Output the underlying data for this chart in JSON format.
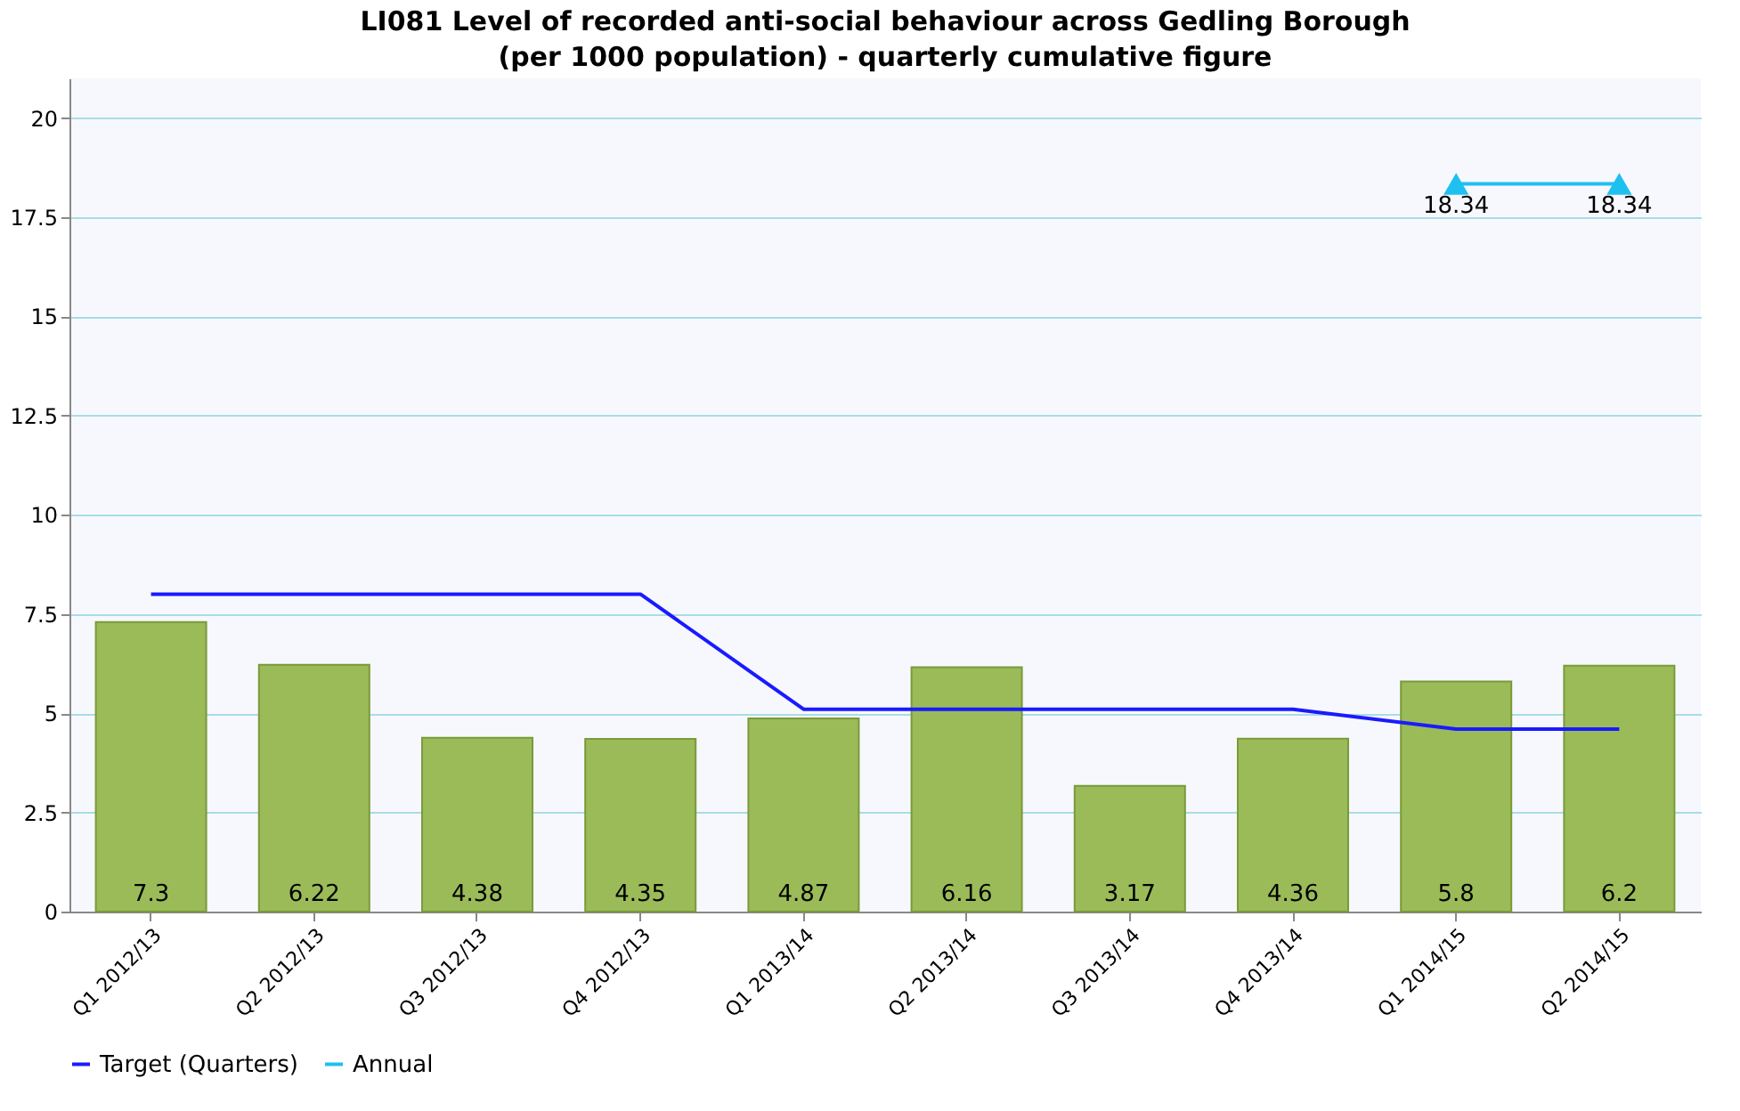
{
  "chart_data": {
    "type": "bar",
    "title": "LI081 Level of recorded anti-social behaviour across Gedling Borough (per 1000 population) - quarterly cumulative figure",
    "categories": [
      "Q1 2012/13",
      "Q2 2012/13",
      "Q3 2012/13",
      "Q4 2012/13",
      "Q1 2013/14",
      "Q2 2013/14",
      "Q3 2013/14",
      "Q4 2013/14",
      "Q1 2014/15",
      "Q2 2014/15"
    ],
    "series": [
      {
        "color": "#9bbb59",
        "values": [
          7.3,
          6.22,
          4.38,
          4.35,
          4.87,
          6.16,
          3.17,
          4.36,
          5.8,
          6.2
        ],
        "value_labels": [
          "7.3",
          "6.22",
          "4.38",
          "4.35",
          "4.87",
          "6.16",
          "3.17",
          "4.36",
          "5.8",
          "6.2"
        ]
      },
      {
        "name": "Target (Quarters)",
        "type": "line",
        "marker": "none",
        "color": "#1a1aff",
        "values": [
          8,
          8,
          8,
          8,
          5.1,
          5.1,
          5.1,
          5.1,
          4.6,
          4.6
        ]
      },
      {
        "name": "Annual",
        "type": "line",
        "marker": "triangle",
        "color": "#1ec0f0",
        "values": [
          null,
          null,
          null,
          null,
          null,
          null,
          null,
          null,
          18.34,
          18.34
        ],
        "value_labels": [
          null,
          null,
          null,
          null,
          null,
          null,
          null,
          null,
          "18.34",
          "18.34"
        ]
      }
    ],
    "ylim": [
      0,
      21
    ],
    "yticks": [
      0,
      2.5,
      5,
      7.5,
      10,
      12.5,
      15,
      17.5,
      20
    ],
    "grid": "y",
    "legend": "bottom"
  }
}
